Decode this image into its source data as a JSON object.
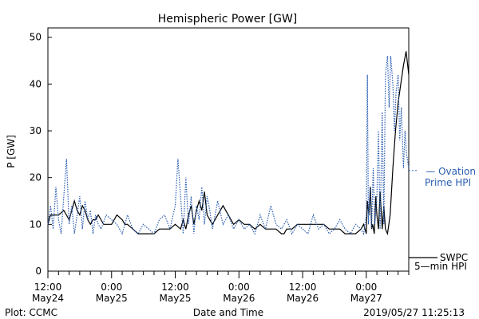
{
  "chart_data": {
    "type": "line",
    "title": "Hemispheric Power [GW]",
    "ylabel": "P [GW]",
    "xlabel": "Date and Time",
    "ylim": [
      0,
      52
    ],
    "yticks": [
      0,
      10,
      20,
      30,
      40,
      50
    ],
    "xlim": [
      12,
      80
    ],
    "x_unit": "hours since 2019-05-24 00:00",
    "xticks": [
      {
        "x": 12,
        "time": "12:00",
        "date": "May24"
      },
      {
        "x": 24,
        "time": "0:00",
        "date": "May25"
      },
      {
        "x": 36,
        "time": "12:00",
        "date": "May25"
      },
      {
        "x": 48,
        "time": "0:00",
        "date": "May26"
      },
      {
        "x": 60,
        "time": "12:00",
        "date": "May26"
      },
      {
        "x": 72,
        "time": "0:00",
        "date": "May27"
      }
    ],
    "series": [
      {
        "name": "SWPC 5-min HPI",
        "legend_lines": [
          "SWPC",
          "5—min HPI"
        ],
        "color": "#000000",
        "style": "solid",
        "x": [
          12,
          12.5,
          13,
          14,
          15,
          16,
          16.5,
          17,
          17.5,
          18,
          18.5,
          19,
          19.5,
          20,
          20.5,
          21,
          21.5,
          22,
          22.5,
          23,
          24,
          25,
          26,
          26.5,
          27,
          28,
          29,
          30,
          31,
          32,
          33,
          34,
          35,
          36,
          37,
          37.5,
          38,
          38.5,
          39,
          39.5,
          40,
          40.5,
          41,
          41.5,
          42,
          43,
          44,
          45,
          46,
          47,
          48,
          49,
          50,
          51,
          52,
          53,
          54,
          55,
          56,
          56.5,
          57,
          58,
          59,
          60,
          61,
          62,
          63,
          64,
          65,
          66,
          67,
          68,
          69,
          70,
          71,
          71.5,
          72,
          72.2,
          72.5,
          72.8,
          73,
          73.2,
          73.5,
          73.8,
          74,
          74.3,
          74.6,
          75,
          75.3,
          75.6,
          76,
          76.5,
          77,
          77.5,
          78,
          78.5,
          79,
          79.5,
          80
        ],
        "y": [
          10,
          12,
          12,
          12,
          13,
          11,
          13,
          15,
          13,
          12,
          14,
          13,
          11,
          10,
          11,
          11,
          12,
          11,
          10,
          10,
          10,
          12,
          11,
          10,
          10,
          9,
          8,
          8,
          8,
          8,
          9,
          9,
          9,
          10,
          9,
          11,
          9,
          12,
          14,
          10,
          13,
          15,
          13,
          17,
          12,
          10,
          12,
          14,
          12,
          10,
          11,
          10,
          10,
          9,
          10,
          9,
          9,
          9,
          8,
          8,
          9,
          9,
          10,
          10,
          10,
          10,
          10,
          10,
          9,
          9,
          9,
          8,
          8,
          8,
          9,
          10,
          8,
          15,
          12,
          18,
          9,
          10,
          8,
          16,
          12,
          9,
          17,
          9,
          14,
          9,
          8,
          12,
          22,
          30,
          36,
          40,
          44,
          47,
          42
        ]
      },
      {
        "name": "Ovation Prime HPI",
        "legend_lines": [
          "— Ovation",
          "Prime HPI"
        ],
        "color": "#2a5db0",
        "style": "dotted",
        "x": [
          12,
          12.5,
          13,
          13.5,
          14,
          14.5,
          15,
          15.5,
          16,
          16.5,
          17,
          17.5,
          18,
          18.5,
          19,
          19.5,
          20,
          20.5,
          21,
          21.5,
          22,
          23,
          24,
          25,
          26,
          27,
          28,
          29,
          30,
          31,
          32,
          33,
          34,
          35,
          36,
          36.5,
          37,
          37.5,
          38,
          38.5,
          39,
          39.5,
          40,
          40.5,
          41,
          41.5,
          42,
          42.5,
          43,
          44,
          45,
          46,
          47,
          48,
          49,
          50,
          51,
          52,
          53,
          54,
          55,
          56,
          57,
          58,
          59,
          60,
          61,
          62,
          63,
          64,
          65,
          66,
          67,
          68,
          69,
          70,
          71,
          71.5,
          72,
          72.2,
          72.4,
          72.7,
          73,
          73.3,
          73.6,
          74,
          74.3,
          74.6,
          75,
          75.3,
          75.6,
          76,
          76.3,
          76.6,
          77,
          77.3,
          77.6,
          78,
          78.3,
          78.6,
          79,
          79.3,
          79.6,
          80
        ],
        "y": [
          10,
          14,
          9,
          18,
          11,
          8,
          16,
          24,
          10,
          14,
          8,
          12,
          16,
          9,
          15,
          11,
          13,
          8,
          12,
          10,
          9,
          12,
          11,
          10,
          8,
          12,
          9,
          8,
          10,
          9,
          8,
          11,
          12,
          9,
          14,
          24,
          16,
          8,
          20,
          10,
          16,
          8,
          14,
          11,
          18,
          10,
          16,
          13,
          9,
          15,
          10,
          12,
          9,
          11,
          9,
          10,
          8,
          12,
          9,
          14,
          10,
          9,
          11,
          8,
          10,
          9,
          8,
          12,
          9,
          10,
          8,
          9,
          11,
          9,
          8,
          10,
          9,
          8,
          12,
          42,
          10,
          18,
          9,
          22,
          10,
          16,
          30,
          9,
          34,
          10,
          42,
          46,
          35,
          46,
          40,
          30,
          38,
          42,
          28,
          35,
          22,
          30,
          25,
          22
        ]
      }
    ],
    "grid": false,
    "legend_position": "right"
  },
  "footer": {
    "left": "Plot: CCMC",
    "center": "Date and Time",
    "right": "2019/05/27 11:25:13"
  }
}
